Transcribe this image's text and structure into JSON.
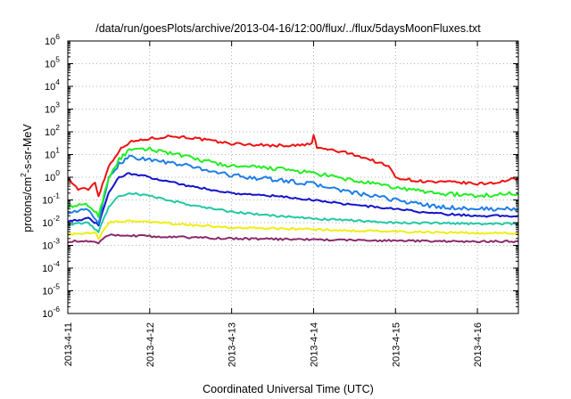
{
  "chart_data": {
    "type": "line",
    "title": "/data/run/goesPlots/archive/2013-04-16/12:00/flux/../flux/5daysMoonFluxes.txt",
    "xlabel": "Coordinated Universal Time (UTC)",
    "ylabel": "protons/cm2-s-sr-MeV",
    "ylabel_parts": {
      "before": "protons/cm",
      "sup": "2",
      "after": "-s-sr-MeV"
    },
    "yscale": "log",
    "ylim_exp": [
      -6,
      6
    ],
    "y_tick_exponents": [
      "-6",
      "-5",
      "-4",
      "-3",
      "-2",
      "-1",
      "0",
      "1",
      "2",
      "3",
      "4",
      "5",
      "6"
    ],
    "y_tick_base": "10",
    "xlim": [
      "2013-04-11 00:00",
      "2013-04-16 12:00"
    ],
    "x_ticks": [
      "2013-4-11",
      "2013-4-12",
      "2013-4-13",
      "2013-4-14",
      "2013-4-15",
      "2013-4-16"
    ],
    "grid": true,
    "legend": "none",
    "series": [
      {
        "color": "#ee1111",
        "points": [
          [
            "2013-04-11 00:00",
            0.9
          ],
          [
            "2013-04-11 03:00",
            0.3
          ],
          [
            "2013-04-11 06:00",
            0.3
          ],
          [
            "2013-04-11 08:00",
            0.6
          ],
          [
            "2013-04-11 09:00",
            0.15
          ],
          [
            "2013-04-11 12:00",
            3
          ],
          [
            "2013-04-11 15:00",
            15
          ],
          [
            "2013-04-11 18:00",
            35
          ],
          [
            "2013-04-12 00:00",
            50
          ],
          [
            "2013-04-12 06:00",
            65
          ],
          [
            "2013-04-12 12:00",
            55
          ],
          [
            "2013-04-12 18:00",
            40
          ],
          [
            "2013-04-13 00:00",
            30
          ],
          [
            "2013-04-13 12:00",
            25
          ],
          [
            "2013-04-13 20:00",
            25
          ],
          [
            "2013-04-13 23:30",
            30
          ],
          [
            "2013-04-14 00:00",
            70
          ],
          [
            "2013-04-14 01:00",
            20
          ],
          [
            "2013-04-14 06:00",
            15
          ],
          [
            "2013-04-14 12:00",
            10
          ],
          [
            "2013-04-14 18:00",
            5
          ],
          [
            "2013-04-14 22:00",
            3
          ],
          [
            "2013-04-15 00:00",
            1
          ],
          [
            "2013-04-15 06:00",
            0.7
          ],
          [
            "2013-04-15 12:00",
            0.6
          ],
          [
            "2013-04-15 18:00",
            0.6
          ],
          [
            "2013-04-16 00:00",
            0.5
          ],
          [
            "2013-04-16 06:00",
            0.6
          ],
          [
            "2013-04-16 12:00",
            0.9
          ]
        ]
      },
      {
        "color": "#22ee22",
        "points": [
          [
            "2013-04-11 00:00",
            0.05
          ],
          [
            "2013-04-11 06:00",
            0.06
          ],
          [
            "2013-04-11 09:00",
            0.02
          ],
          [
            "2013-04-11 12:00",
            1
          ],
          [
            "2013-04-11 15:00",
            6
          ],
          [
            "2013-04-11 18:00",
            15
          ],
          [
            "2013-04-12 00:00",
            17
          ],
          [
            "2013-04-12 06:00",
            12
          ],
          [
            "2013-04-12 12:00",
            7
          ],
          [
            "2013-04-13 00:00",
            3
          ],
          [
            "2013-04-13 12:00",
            2.5
          ],
          [
            "2013-04-14 00:00",
            1.5
          ],
          [
            "2013-04-14 12:00",
            0.7
          ],
          [
            "2013-04-15 00:00",
            0.35
          ],
          [
            "2013-04-15 12:00",
            0.2
          ],
          [
            "2013-04-16 00:00",
            0.15
          ],
          [
            "2013-04-16 12:00",
            0.2
          ]
        ]
      },
      {
        "color": "#1e7ee8",
        "points": [
          [
            "2013-04-11 00:00",
            0.03
          ],
          [
            "2013-04-11 06:00",
            0.035
          ],
          [
            "2013-04-11 09:00",
            0.01
          ],
          [
            "2013-04-11 12:00",
            0.8
          ],
          [
            "2013-04-11 15:00",
            4
          ],
          [
            "2013-04-11 18:00",
            8
          ],
          [
            "2013-04-12 00:00",
            6
          ],
          [
            "2013-04-12 12:00",
            3
          ],
          [
            "2013-04-13 00:00",
            1.2
          ],
          [
            "2013-04-13 12:00",
            0.8
          ],
          [
            "2013-04-14 00:00",
            0.5
          ],
          [
            "2013-04-14 12:00",
            0.2
          ],
          [
            "2013-04-15 00:00",
            0.1
          ],
          [
            "2013-04-15 12:00",
            0.05
          ],
          [
            "2013-04-16 00:00",
            0.04
          ],
          [
            "2013-04-16 12:00",
            0.04
          ]
        ]
      },
      {
        "color": "#1212cc",
        "points": [
          [
            "2013-04-11 00:00",
            0.012
          ],
          [
            "2013-04-11 06:00",
            0.015
          ],
          [
            "2013-04-11 09:00",
            0.008
          ],
          [
            "2013-04-11 12:00",
            0.2
          ],
          [
            "2013-04-11 15:00",
            1
          ],
          [
            "2013-04-11 18:00",
            1.5
          ],
          [
            "2013-04-12 00:00",
            1
          ],
          [
            "2013-04-12 12:00",
            0.4
          ],
          [
            "2013-04-13 00:00",
            0.2
          ],
          [
            "2013-04-13 12:00",
            0.15
          ],
          [
            "2013-04-14 00:00",
            0.1
          ],
          [
            "2013-04-14 12:00",
            0.06
          ],
          [
            "2013-04-15 00:00",
            0.04
          ],
          [
            "2013-04-15 12:00",
            0.025
          ],
          [
            "2013-04-16 00:00",
            0.02
          ],
          [
            "2013-04-16 12:00",
            0.02
          ]
        ]
      },
      {
        "color": "#22c8a4",
        "points": [
          [
            "2013-04-11 00:00",
            0.008
          ],
          [
            "2013-04-11 06:00",
            0.01
          ],
          [
            "2013-04-11 09:00",
            0.004
          ],
          [
            "2013-04-11 12:00",
            0.05
          ],
          [
            "2013-04-11 15:00",
            0.15
          ],
          [
            "2013-04-11 18:00",
            0.2
          ],
          [
            "2013-04-12 00:00",
            0.15
          ],
          [
            "2013-04-12 12:00",
            0.06
          ],
          [
            "2013-04-13 00:00",
            0.03
          ],
          [
            "2013-04-13 12:00",
            0.02
          ],
          [
            "2013-04-14 00:00",
            0.015
          ],
          [
            "2013-04-15 00:00",
            0.01
          ],
          [
            "2013-04-16 00:00",
            0.009
          ],
          [
            "2013-04-16 12:00",
            0.009
          ]
        ]
      },
      {
        "color": "#f0ee10",
        "points": [
          [
            "2013-04-11 00:00",
            0.003
          ],
          [
            "2013-04-11 08:00",
            0.0035
          ],
          [
            "2013-04-11 09:00",
            0.002
          ],
          [
            "2013-04-11 12:00",
            0.01
          ],
          [
            "2013-04-11 18:00",
            0.012
          ],
          [
            "2013-04-12 12:00",
            0.008
          ],
          [
            "2013-04-13 00:00",
            0.006
          ],
          [
            "2013-04-14 00:00",
            0.005
          ],
          [
            "2013-04-15 00:00",
            0.004
          ],
          [
            "2013-04-16 00:00",
            0.0035
          ],
          [
            "2013-04-16 12:00",
            0.0035
          ]
        ]
      },
      {
        "color": "#8a2a6a",
        "points": [
          [
            "2013-04-11 00:00",
            0.0015
          ],
          [
            "2013-04-11 06:00",
            0.0015
          ],
          [
            "2013-04-11 09:00",
            0.0013
          ],
          [
            "2013-04-11 12:00",
            0.003
          ],
          [
            "2013-04-12 00:00",
            0.0025
          ],
          [
            "2013-04-13 00:00",
            0.002
          ],
          [
            "2013-04-14 00:00",
            0.0018
          ],
          [
            "2013-04-15 00:00",
            0.0016
          ],
          [
            "2013-04-16 00:00",
            0.0015
          ],
          [
            "2013-04-16 12:00",
            0.0015
          ]
        ]
      }
    ]
  }
}
